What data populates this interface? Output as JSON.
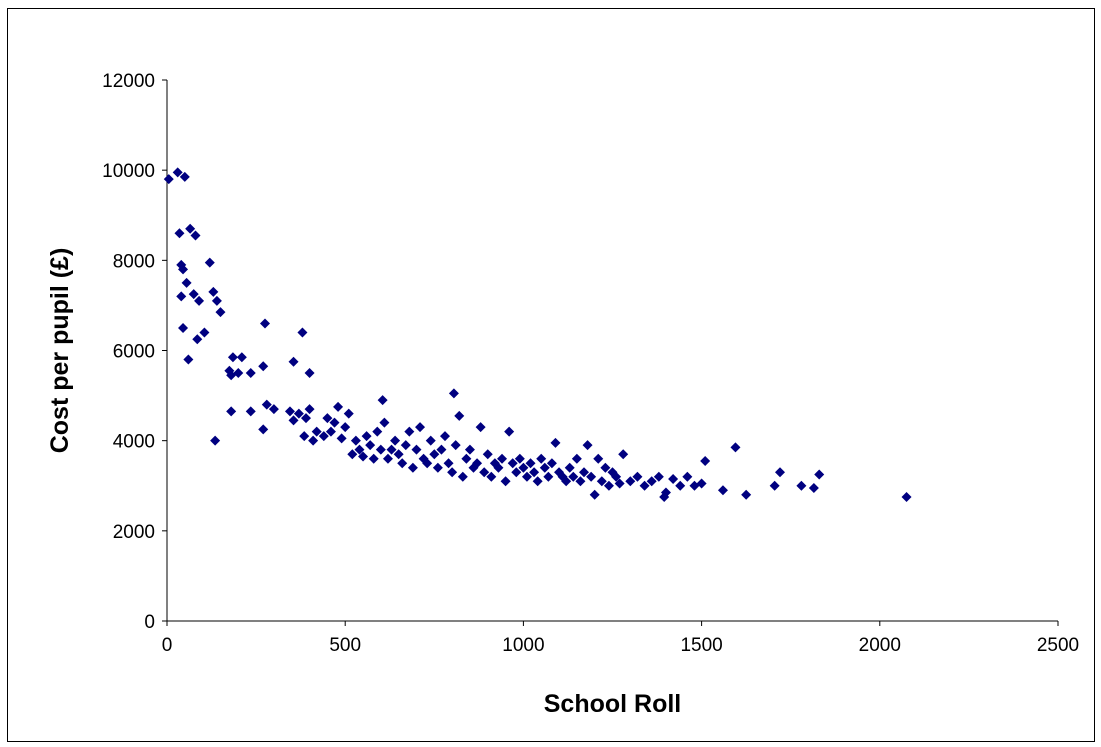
{
  "chart_data": {
    "type": "scatter",
    "title": "",
    "xlabel": "School Roll",
    "ylabel": "Cost per pupil (£)",
    "xlim": [
      0,
      2500
    ],
    "ylim": [
      0,
      12000
    ],
    "x_ticks": [
      0,
      500,
      1000,
      1500,
      2000,
      2500
    ],
    "y_ticks": [
      0,
      2000,
      4000,
      6000,
      8000,
      10000,
      12000
    ],
    "x_tick_labels": [
      "0",
      "500",
      "1000",
      "1500",
      "2000",
      "2500"
    ],
    "y_tick_labels": [
      "0",
      "2000",
      "4000",
      "6000",
      "8000",
      "10000",
      "12000"
    ],
    "grid": false,
    "legend": "none",
    "marker": "diamond",
    "marker_color": "#000080",
    "series": [
      {
        "points": [
          [
            5,
            9800
          ],
          [
            30,
            9950
          ],
          [
            50,
            9850
          ],
          [
            35,
            8600
          ],
          [
            65,
            8700
          ],
          [
            80,
            8550
          ],
          [
            40,
            7900
          ],
          [
            45,
            7800
          ],
          [
            55,
            7500
          ],
          [
            75,
            7250
          ],
          [
            90,
            7100
          ],
          [
            120,
            7950
          ],
          [
            130,
            7300
          ],
          [
            140,
            7100
          ],
          [
            150,
            6850
          ],
          [
            40,
            7200
          ],
          [
            45,
            6500
          ],
          [
            85,
            6250
          ],
          [
            105,
            6400
          ],
          [
            60,
            5800
          ],
          [
            135,
            4000
          ],
          [
            175,
            5550
          ],
          [
            180,
            5450
          ],
          [
            185,
            5850
          ],
          [
            200,
            5500
          ],
          [
            210,
            5850
          ],
          [
            235,
            5500
          ],
          [
            270,
            5650
          ],
          [
            275,
            6600
          ],
          [
            180,
            4650
          ],
          [
            235,
            4650
          ],
          [
            270,
            4250
          ],
          [
            280,
            4800
          ],
          [
            300,
            4700
          ],
          [
            345,
            4650
          ],
          [
            355,
            5750
          ],
          [
            380,
            6400
          ],
          [
            400,
            5500
          ],
          [
            355,
            4450
          ],
          [
            370,
            4600
          ],
          [
            385,
            4100
          ],
          [
            390,
            4500
          ],
          [
            400,
            4700
          ],
          [
            410,
            4000
          ],
          [
            420,
            4200
          ],
          [
            440,
            4100
          ],
          [
            450,
            4500
          ],
          [
            460,
            4200
          ],
          [
            470,
            4400
          ],
          [
            480,
            4750
          ],
          [
            490,
            4050
          ],
          [
            500,
            4300
          ],
          [
            510,
            4600
          ],
          [
            520,
            3700
          ],
          [
            530,
            4000
          ],
          [
            540,
            3800
          ],
          [
            550,
            3650
          ],
          [
            560,
            4100
          ],
          [
            570,
            3900
          ],
          [
            580,
            3600
          ],
          [
            590,
            4200
          ],
          [
            600,
            3800
          ],
          [
            605,
            4900
          ],
          [
            610,
            4400
          ],
          [
            620,
            3600
          ],
          [
            630,
            3800
          ],
          [
            640,
            4000
          ],
          [
            650,
            3700
          ],
          [
            660,
            3500
          ],
          [
            670,
            3900
          ],
          [
            680,
            4200
          ],
          [
            690,
            3400
          ],
          [
            700,
            3800
          ],
          [
            710,
            4300
          ],
          [
            720,
            3600
          ],
          [
            730,
            3500
          ],
          [
            740,
            4000
          ],
          [
            750,
            3700
          ],
          [
            760,
            3400
          ],
          [
            770,
            3800
          ],
          [
            780,
            4100
          ],
          [
            790,
            3500
          ],
          [
            800,
            3300
          ],
          [
            805,
            5050
          ],
          [
            810,
            3900
          ],
          [
            820,
            4550
          ],
          [
            830,
            3200
          ],
          [
            840,
            3600
          ],
          [
            850,
            3800
          ],
          [
            860,
            3400
          ],
          [
            870,
            3500
          ],
          [
            880,
            4300
          ],
          [
            890,
            3300
          ],
          [
            900,
            3700
          ],
          [
            910,
            3200
          ],
          [
            920,
            3500
          ],
          [
            930,
            3400
          ],
          [
            940,
            3600
          ],
          [
            950,
            3100
          ],
          [
            960,
            4200
          ],
          [
            970,
            3500
          ],
          [
            980,
            3300
          ],
          [
            990,
            3600
          ],
          [
            1000,
            3400
          ],
          [
            1010,
            3200
          ],
          [
            1020,
            3500
          ],
          [
            1030,
            3300
          ],
          [
            1040,
            3100
          ],
          [
            1050,
            3600
          ],
          [
            1060,
            3400
          ],
          [
            1070,
            3200
          ],
          [
            1080,
            3500
          ],
          [
            1090,
            3950
          ],
          [
            1100,
            3300
          ],
          [
            1110,
            3200
          ],
          [
            1120,
            3100
          ],
          [
            1130,
            3400
          ],
          [
            1140,
            3200
          ],
          [
            1150,
            3600
          ],
          [
            1160,
            3100
          ],
          [
            1170,
            3300
          ],
          [
            1180,
            3900
          ],
          [
            1190,
            3200
          ],
          [
            1200,
            2800
          ],
          [
            1210,
            3600
          ],
          [
            1220,
            3100
          ],
          [
            1230,
            3400
          ],
          [
            1240,
            3000
          ],
          [
            1250,
            3300
          ],
          [
            1260,
            3200
          ],
          [
            1270,
            3050
          ],
          [
            1280,
            3700
          ],
          [
            1300,
            3100
          ],
          [
            1320,
            3200
          ],
          [
            1340,
            3000
          ],
          [
            1360,
            3100
          ],
          [
            1380,
            3200
          ],
          [
            1395,
            2750
          ],
          [
            1400,
            2850
          ],
          [
            1420,
            3150
          ],
          [
            1440,
            3000
          ],
          [
            1460,
            3200
          ],
          [
            1480,
            3000
          ],
          [
            1500,
            3050
          ],
          [
            1510,
            3550
          ],
          [
            1560,
            2900
          ],
          [
            1595,
            3850
          ],
          [
            1625,
            2800
          ],
          [
            1705,
            3000
          ],
          [
            1720,
            3300
          ],
          [
            1780,
            3000
          ],
          [
            1815,
            2950
          ],
          [
            1830,
            3250
          ],
          [
            2075,
            2750
          ]
        ]
      }
    ]
  }
}
